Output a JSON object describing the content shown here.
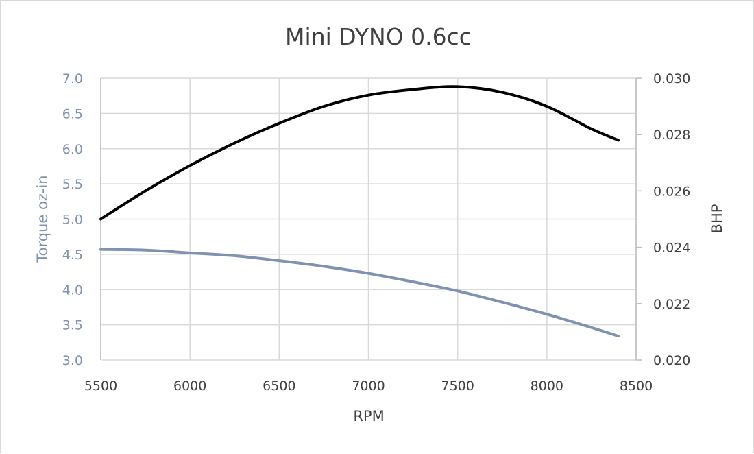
{
  "chart_data": {
    "type": "line",
    "title": "Mini DYNO 0.6cc",
    "xlabel": "RPM",
    "ylabel_left": "Torque oz-in",
    "ylabel_right": "BHP",
    "xlim": [
      5500,
      8500
    ],
    "ylim_left": [
      3.0,
      7.0
    ],
    "ylim_right": [
      0.02,
      0.03
    ],
    "x_ticks": [
      "5500",
      "6000",
      "6500",
      "7000",
      "7500",
      "8000",
      "8500"
    ],
    "y_left_ticks": [
      "3.0",
      "3.5",
      "4.0",
      "4.5",
      "5.0",
      "5.5",
      "6.0",
      "6.5",
      "7.0"
    ],
    "y_right_ticks": [
      "0.020",
      "0.022",
      "0.024",
      "0.026",
      "0.028",
      "0.030"
    ],
    "grid": true,
    "series": [
      {
        "axis": "left",
        "color": "#7f93b0",
        "x": [
          5500,
          5750,
          6000,
          6250,
          6500,
          6750,
          7000,
          7250,
          7500,
          7750,
          8000,
          8250,
          8400
        ],
        "values": [
          4.57,
          4.56,
          4.52,
          4.48,
          4.41,
          4.33,
          4.23,
          4.11,
          3.98,
          3.82,
          3.65,
          3.46,
          3.34
        ]
      },
      {
        "axis": "right",
        "color": "#000000",
        "x": [
          5500,
          5750,
          6000,
          6250,
          6500,
          6750,
          7000,
          7250,
          7500,
          7750,
          8000,
          8250,
          8400
        ],
        "values": [
          0.025,
          0.026,
          0.0269,
          0.0277,
          0.0284,
          0.029,
          0.0294,
          0.0296,
          0.0297,
          0.0295,
          0.029,
          0.0282,
          0.0278
        ]
      }
    ],
    "colors": {
      "left_axis_text": "#7f93b0",
      "right_axis_text": "#404040",
      "grid": "#d9d9d9",
      "title": "#404040"
    }
  }
}
